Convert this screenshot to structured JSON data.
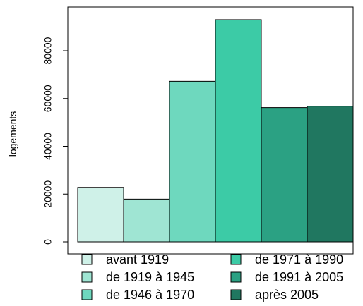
{
  "chart_data": {
    "type": "bar",
    "ylabel": "logements",
    "xlabel": "",
    "title": "",
    "ylim": [
      0,
      100000
    ],
    "y_ticks": [
      0,
      20000,
      40000,
      60000,
      80000
    ],
    "grid": false,
    "legend_position": "bottom",
    "categories": [
      "avant 1919",
      "de 1919 à 1945",
      "de 1946 à 1970",
      "de 1971 à 1990",
      "de 1991 à 2005",
      "après 2005"
    ],
    "values": [
      22800,
      17900,
      67200,
      93000,
      56200,
      56800
    ],
    "colors": [
      "#cff1e8",
      "#9fe5d3",
      "#6ed8be",
      "#3ccba6",
      "#2ba183",
      "#207760"
    ]
  }
}
